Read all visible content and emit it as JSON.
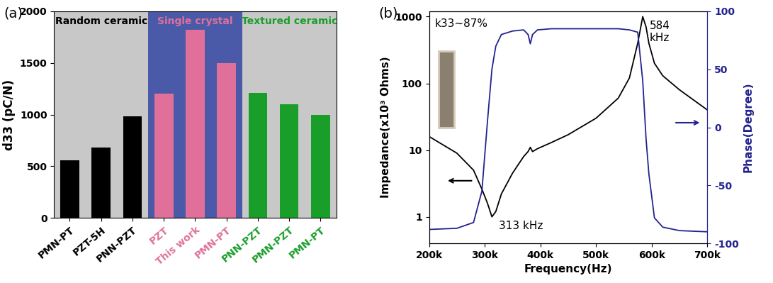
{
  "chart_data": [
    {
      "type": "bar",
      "panel": "(a)",
      "y_label": "d33 (pC/N)",
      "categories": [
        "PMN-PT",
        "PZT-5H",
        "PNN-PZT",
        "PZT",
        "This work",
        "PMN-PT",
        "PNN-PZT",
        "PMN-PZT",
        "PMN-PT"
      ],
      "values": [
        560,
        680,
        985,
        1200,
        1820,
        1500,
        1210,
        1100,
        1000
      ],
      "colors": [
        "#000000",
        "#000000",
        "#000000",
        "#e0709a",
        "#e0709a",
        "#e0709a",
        "#1a9e2a",
        "#1a9e2a",
        "#1a9e2a"
      ],
      "groups": [
        {
          "name": "Random ceramic",
          "size": 3,
          "color": "#c8c8c8"
        },
        {
          "name": "Single crystal",
          "size": 3,
          "color": "#4b5aa8"
        },
        {
          "name": "Textured ceramic",
          "size": 3,
          "color": "#c8c8c8"
        }
      ],
      "ylim": [
        0,
        2000
      ],
      "yticks": [
        0,
        500,
        1000,
        1500,
        2000
      ],
      "grid": false
    },
    {
      "type": "line",
      "panel": "(b)",
      "x_label": "Frequency(Hz)",
      "y_label": "Impedance(x10³ Ohms)",
      "y2_label": "Phase(Degree)",
      "log": "y",
      "x": [
        200000,
        250000,
        280000,
        295000,
        305000,
        313000,
        320000,
        330000,
        350000,
        370000,
        378000,
        382000,
        386000,
        395000,
        420000,
        450000,
        500000,
        540000,
        560000,
        575000,
        584000,
        590000,
        595000,
        605000,
        620000,
        650000,
        700000
      ],
      "series": [
        {
          "name": "Impedance",
          "color": "#000000",
          "values": [
            16,
            9,
            5,
            2.6,
            1.6,
            1.0,
            1.2,
            2.2,
            4.5,
            8,
            9.5,
            11,
            9.5,
            10.5,
            13,
            17,
            30,
            60,
            120,
            400,
            1000,
            700,
            400,
            200,
            130,
            80,
            40
          ]
        },
        {
          "name": "Phase",
          "color": "#23238f",
          "axis": "y2",
          "values": [
            -88,
            -87,
            -82,
            -55,
            5,
            50,
            70,
            80,
            83,
            84,
            80,
            72,
            80,
            84,
            85,
            85,
            85,
            85,
            84,
            82,
            40,
            -10,
            -40,
            -78,
            -86,
            -89,
            -90
          ]
        }
      ],
      "annotations": [
        {
          "text": "k33~87%"
        },
        {
          "text": "584\nkHz",
          "x": 584000,
          "y": 1000
        },
        {
          "text": "313 kHz",
          "x": 313000,
          "y": 1.0
        }
      ],
      "xlim": [
        200000,
        700000
      ],
      "xticks": [
        {
          "value": 200000,
          "label": "200k"
        },
        {
          "value": 300000,
          "label": "300k"
        },
        {
          "value": 400000,
          "label": "400k"
        },
        {
          "value": 500000,
          "label": "500k"
        },
        {
          "value": 600000,
          "label": "600k"
        },
        {
          "value": 700000,
          "label": "700k"
        }
      ],
      "ylim": [
        0.4,
        1200
      ],
      "yticks": [
        1,
        10,
        100,
        1000
      ],
      "y2lim": [
        -100,
        100
      ],
      "y2ticks": [
        -100,
        -50,
        0,
        50,
        100
      ],
      "grid": false
    }
  ]
}
